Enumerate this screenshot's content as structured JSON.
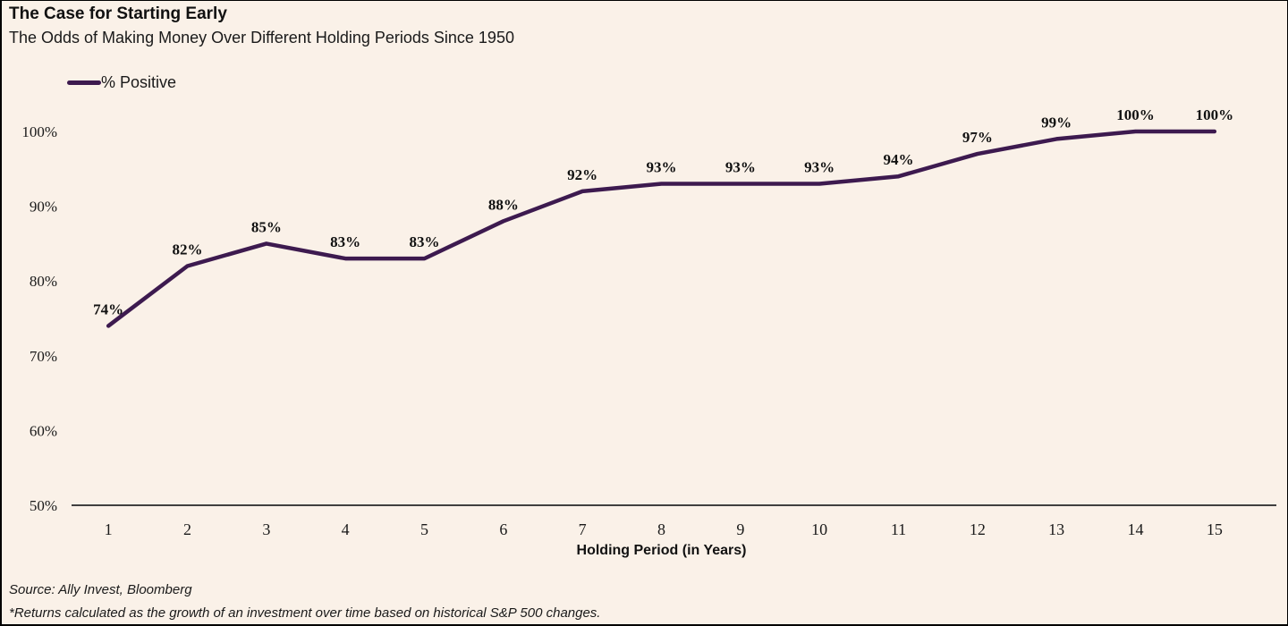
{
  "header": {
    "title": "The Case for Starting Early",
    "subtitle": "The Odds of Making Money Over Different Holding Periods Since 1950"
  },
  "legend": {
    "label": "% Positive"
  },
  "chart_data": {
    "type": "line",
    "title": "The Case for Starting Early",
    "subtitle": "The Odds of Making Money Over Different Holding Periods Since 1950",
    "categories": [
      "1",
      "2",
      "3",
      "4",
      "5",
      "6",
      "7",
      "8",
      "9",
      "10",
      "11",
      "12",
      "13",
      "14",
      "15"
    ],
    "series": [
      {
        "name": "% Positive",
        "values": [
          74,
          82,
          85,
          83,
          83,
          88,
          92,
          93,
          93,
          93,
          94,
          97,
          99,
          100,
          100
        ]
      }
    ],
    "data_labels": [
      "74%",
      "82%",
      "85%",
      "83%",
      "83%",
      "88%",
      "92%",
      "93%",
      "93%",
      "93%",
      "94%",
      "97%",
      "99%",
      "100%",
      "100%"
    ],
    "xlabel": "Holding Period (in Years)",
    "ylabel": "",
    "ylim": [
      50,
      100
    ],
    "yticks": [
      50,
      60,
      70,
      80,
      90,
      100
    ],
    "ytick_labels": [
      "50%",
      "60%",
      "70%",
      "80%",
      "90%",
      "100%"
    ],
    "grid": false,
    "legend_position": "top-left"
  },
  "footer": {
    "source": "Source: Ally Invest, Bloomberg",
    "note": "*Returns calculated as the growth of an investment over time based on historical S&P 500 changes."
  },
  "colors": {
    "line": "#3d1a4f",
    "background": "#faf1e8",
    "axis": "#3f3f3f",
    "text": "#1a1a1a"
  }
}
